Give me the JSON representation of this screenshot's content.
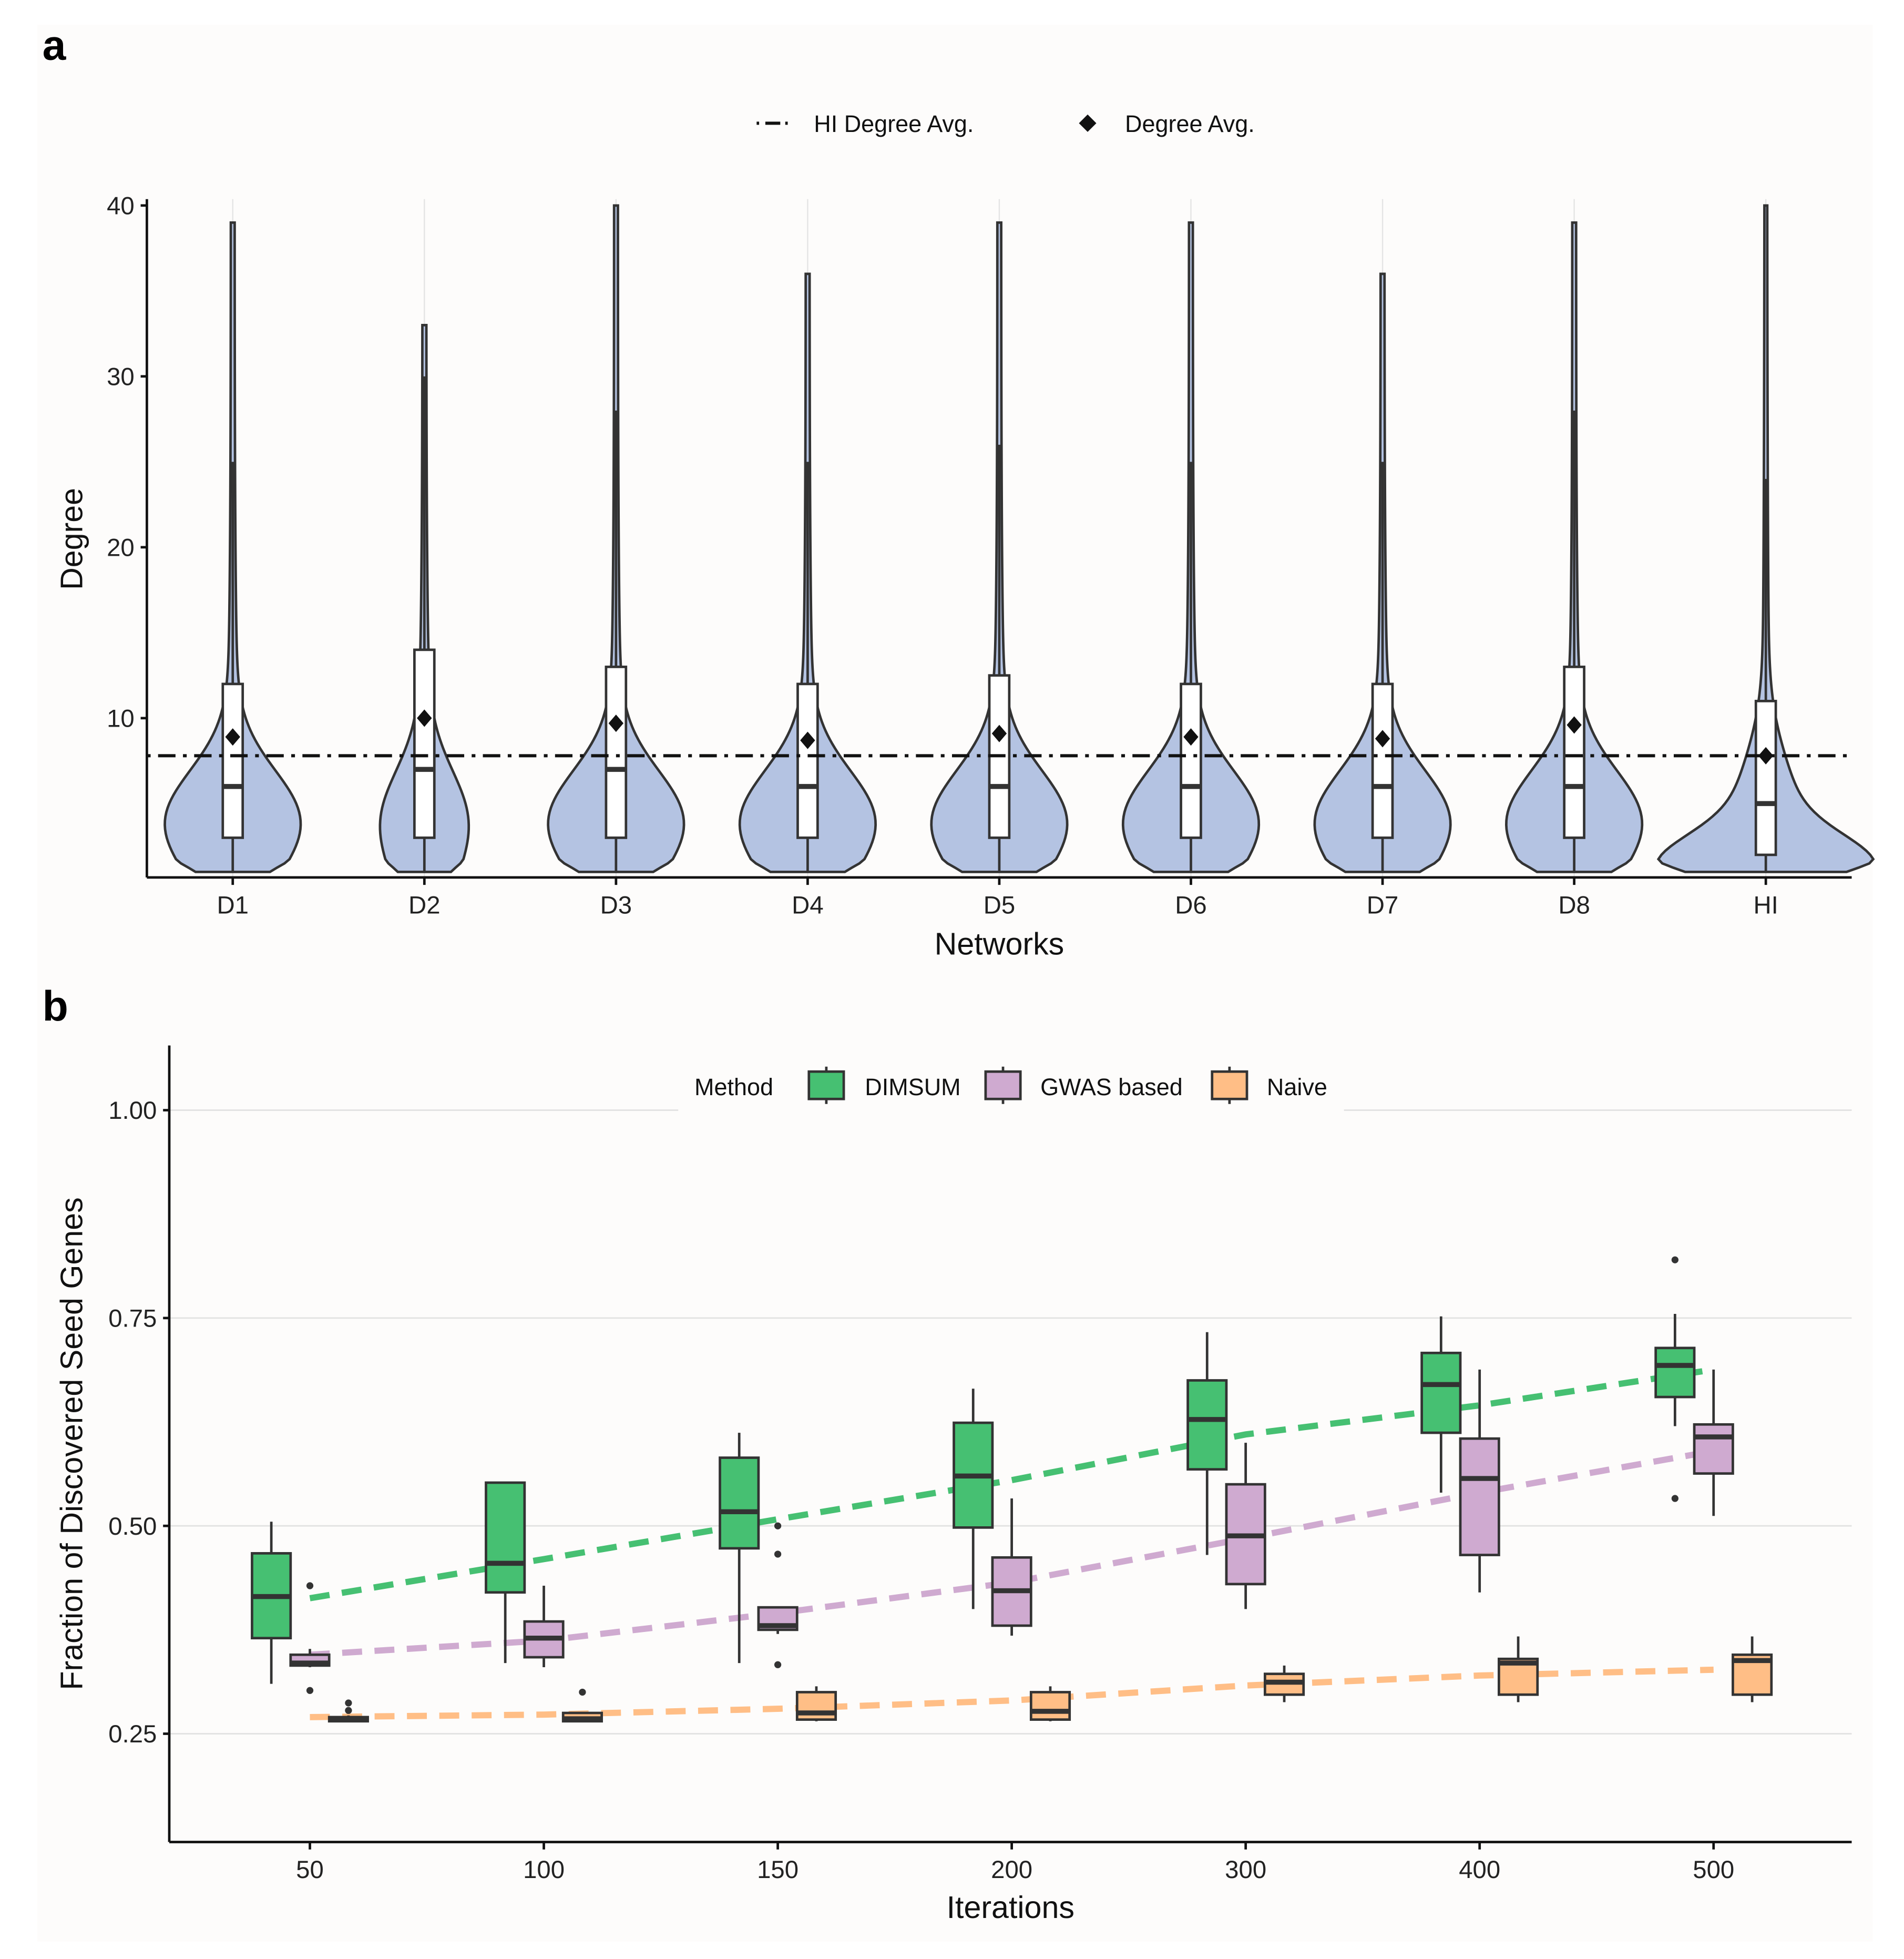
{
  "chart_data": [
    {
      "panel_label": "a",
      "type": "violin",
      "xlabel": "Networks",
      "ylabel": "Degree",
      "ylim": [
        0,
        40
      ],
      "yticks": [
        10,
        20,
        30,
        40
      ],
      "grid": "vertical major",
      "legend": {
        "placement": "top",
        "entries": [
          "HI Degree Avg.",
          "Degree Avg."
        ]
      },
      "hi_degree_avg": 7.8,
      "fill_color": "#b4c3e2",
      "categories": [
        "D1",
        "D2",
        "D3",
        "D4",
        "D5",
        "D6",
        "D7",
        "D8",
        "HI"
      ],
      "series": [
        {
          "category": "D1",
          "min": 1,
          "q1": 3,
          "median": 6,
          "q3": 12,
          "whisker_high": 25,
          "max": 39,
          "mean": 8.9
        },
        {
          "category": "D2",
          "min": 1,
          "q1": 3,
          "median": 7,
          "q3": 14,
          "whisker_high": 30,
          "max": 33,
          "mean": 10.0
        },
        {
          "category": "D3",
          "min": 1,
          "q1": 3,
          "median": 7,
          "q3": 13,
          "whisker_high": 28,
          "max": 40,
          "mean": 9.7
        },
        {
          "category": "D4",
          "min": 1,
          "q1": 3,
          "median": 6,
          "q3": 12,
          "whisker_high": 25,
          "max": 36,
          "mean": 8.7
        },
        {
          "category": "D5",
          "min": 1,
          "q1": 3,
          "median": 6,
          "q3": 12.5,
          "whisker_high": 26,
          "max": 39,
          "mean": 9.1
        },
        {
          "category": "D6",
          "min": 1,
          "q1": 3,
          "median": 6,
          "q3": 12,
          "whisker_high": 25,
          "max": 39,
          "mean": 8.9
        },
        {
          "category": "D7",
          "min": 1,
          "q1": 3,
          "median": 6,
          "q3": 12,
          "whisker_high": 25,
          "max": 36,
          "mean": 8.8
        },
        {
          "category": "D8",
          "min": 1,
          "q1": 3,
          "median": 6,
          "q3": 13,
          "whisker_high": 28,
          "max": 39,
          "mean": 9.6
        },
        {
          "category": "HI",
          "min": 1,
          "q1": 2,
          "median": 5,
          "q3": 11,
          "whisker_high": 24,
          "max": 40,
          "mean": 7.8
        }
      ]
    },
    {
      "panel_label": "b",
      "type": "box",
      "xlabel": "Iterations",
      "ylabel": "Fraction of Discovered Seed Genes",
      "ylim": [
        0.12,
        1.08
      ],
      "yticks": [
        "0.25",
        "0.50",
        "0.75",
        "1.00"
      ],
      "grid": "horizontal major",
      "legend": {
        "placement": "top",
        "title": "Method"
      },
      "categories": [
        "50",
        "100",
        "150",
        "200",
        "300",
        "400",
        "500"
      ],
      "series": [
        {
          "name": "DIMSUM",
          "color": "#46c072",
          "boxes": [
            [
              0.31,
              0.365,
              0.415,
              0.467,
              0.505
            ],
            [
              0.335,
              0.42,
              0.455,
              0.552,
              0.552
            ],
            [
              0.335,
              0.473,
              0.517,
              0.582,
              0.612
            ],
            [
              0.4,
              0.498,
              0.56,
              0.624,
              0.665
            ],
            [
              0.465,
              0.568,
              0.628,
              0.675,
              0.733
            ],
            [
              0.54,
              0.612,
              0.67,
              0.708,
              0.752
            ],
            [
              0.62,
              0.655,
              0.693,
              0.714,
              0.755
            ]
          ],
          "outliers": [
            [],
            [],
            [],
            [],
            [],
            [],
            [
              0.82,
              0.533
            ]
          ],
          "trend": [
            0.413,
            0.46,
            0.508,
            0.555,
            0.61,
            0.645,
            0.688
          ]
        },
        {
          "name": "GWAS based",
          "color": "#cfaad0",
          "boxes": [
            [
              0.33,
              0.332,
              0.335,
              0.345,
              0.352
            ],
            [
              0.33,
              0.342,
              0.365,
              0.385,
              0.428
            ],
            [
              0.37,
              0.375,
              0.38,
              0.402,
              0.402
            ],
            [
              0.368,
              0.38,
              0.422,
              0.462,
              0.533
            ],
            [
              0.4,
              0.43,
              0.488,
              0.55,
              0.6
            ],
            [
              0.42,
              0.465,
              0.557,
              0.605,
              0.688
            ],
            [
              0.512,
              0.563,
              0.607,
              0.622,
              0.688
            ]
          ],
          "outliers": [
            [
              0.428,
              0.302
            ],
            [],
            [
              0.5,
              0.466,
              0.333
            ],
            [],
            [],
            [],
            []
          ],
          "trend": [
            0.345,
            0.362,
            0.395,
            0.432,
            0.485,
            0.54,
            0.59
          ]
        },
        {
          "name": "Naive",
          "color": "#ffbe86",
          "boxes": [
            [
              0.265,
              0.265,
              0.268,
              0.27,
              0.272
            ],
            [
              0.265,
              0.265,
              0.268,
              0.275,
              0.275
            ],
            [
              0.265,
              0.267,
              0.275,
              0.3,
              0.307
            ],
            [
              0.265,
              0.267,
              0.277,
              0.3,
              0.307
            ],
            [
              0.288,
              0.297,
              0.312,
              0.322,
              0.332
            ],
            [
              0.288,
              0.297,
              0.335,
              0.34,
              0.367
            ],
            [
              0.288,
              0.297,
              0.338,
              0.345,
              0.367
            ]
          ],
          "outliers": [
            [
              0.287,
              0.278
            ],
            [
              0.3
            ],
            [],
            [],
            [],
            [],
            []
          ],
          "trend": [
            0.27,
            0.273,
            0.28,
            0.29,
            0.308,
            0.32,
            0.327
          ]
        }
      ]
    }
  ]
}
